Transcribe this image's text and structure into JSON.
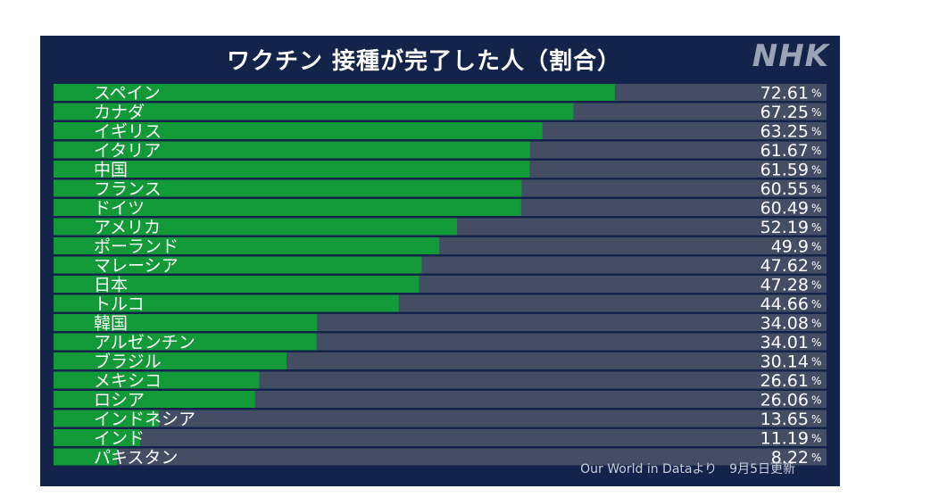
{
  "title": "ワクチン 接種が完了した人（割合）",
  "logo_text": "NHK",
  "source": "Our World in Dataより　9月5日更新",
  "unit": "%",
  "colors": {
    "background": "#14234a",
    "track": "#434d64",
    "bar": "#129a38",
    "text": "#ffffff"
  },
  "chart_data": {
    "type": "bar",
    "orientation": "horizontal",
    "title": "ワクチン 接種が完了した人（割合）",
    "xlim": [
      0,
      100
    ],
    "categories": [
      "スペイン",
      "カナダ",
      "イギリス",
      "イタリア",
      "中国",
      "フランス",
      "ドイツ",
      "アメリカ",
      "ポーランド",
      "マレーシア",
      "日本",
      "トルコ",
      "韓国",
      "アルゼンチン",
      "ブラジル",
      "メキシコ",
      "ロシア",
      "インドネシア",
      "インド",
      "パキスタン"
    ],
    "value_labels": [
      "72.61",
      "67.25",
      "63.25",
      "61.67",
      "61.59",
      "60.55",
      "60.49",
      "52.19",
      "49.9",
      "47.62",
      "47.28",
      "44.66",
      "34.08",
      "34.01",
      "30.14",
      "26.61",
      "26.06",
      "13.65",
      "11.19",
      "8.22"
    ],
    "values": [
      72.61,
      67.25,
      63.25,
      61.67,
      61.59,
      60.55,
      60.49,
      52.19,
      49.9,
      47.62,
      47.28,
      44.66,
      34.08,
      34.01,
      30.14,
      26.61,
      26.06,
      13.65,
      11.19,
      8.22
    ]
  }
}
